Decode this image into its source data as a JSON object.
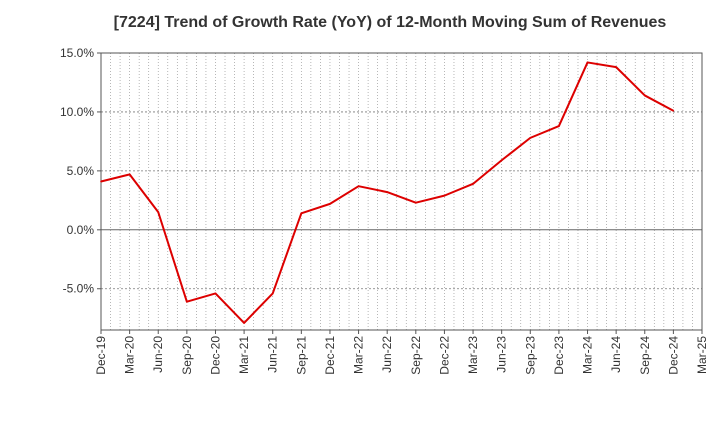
{
  "chart_data": {
    "type": "line",
    "title": "[7224]  Trend of Growth Rate (YoY) of 12-Month Moving Sum of Revenues",
    "xlabel": "",
    "ylabel": "",
    "ylim": [
      -8.5,
      15.0
    ],
    "yticks": [
      15.0,
      10.0,
      5.0,
      0.0,
      -5.0
    ],
    "ytick_labels": [
      "15.0%",
      "10.0%",
      "5.0%",
      "0.0%",
      "-5.0%"
    ],
    "x_tick_labels": [
      "Dec-19",
      "Mar-20",
      "Jun-20",
      "Sep-20",
      "Dec-20",
      "Mar-21",
      "Jun-21",
      "Sep-21",
      "Dec-21",
      "Mar-22",
      "Jun-22",
      "Sep-22",
      "Dec-22",
      "Mar-23",
      "Jun-23",
      "Sep-23",
      "Dec-23",
      "Mar-24",
      "Jun-24",
      "Sep-24",
      "Dec-24",
      "Mar-25"
    ],
    "grid": true,
    "series": [
      {
        "color": "#dd0000",
        "x": [
          "Dec-19",
          "Mar-20",
          "Jun-20",
          "Sep-20",
          "Dec-20",
          "Mar-21",
          "Jun-21",
          "Sep-21",
          "Dec-21",
          "Mar-22",
          "Jun-22",
          "Sep-22",
          "Dec-22",
          "Mar-23",
          "Jun-23",
          "Sep-23",
          "Dec-23",
          "Mar-24",
          "Jun-24",
          "Sep-24",
          "Dec-24"
        ],
        "values": [
          4.1,
          4.7,
          1.5,
          -6.1,
          -5.4,
          -7.9,
          -5.4,
          1.4,
          2.2,
          3.7,
          3.2,
          2.3,
          2.9,
          3.9,
          5.9,
          7.8,
          8.8,
          14.2,
          13.8,
          11.4,
          10.1
        ]
      }
    ]
  }
}
